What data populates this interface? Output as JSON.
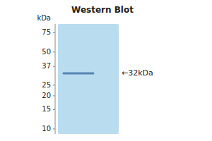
{
  "chart_data": {
    "type": "gel",
    "title": "Western Blot",
    "ylabel": "kDa",
    "values": [
      32
    ],
    "value_labels": [
      "←32kDa"
    ],
    "color": "#4a7aaa",
    "log": "y",
    "ylim": [
      9.0,
      90.0
    ],
    "yticks": [
      75,
      50,
      37,
      25,
      20,
      15,
      10
    ],
    "data_labels": true
  }
}
